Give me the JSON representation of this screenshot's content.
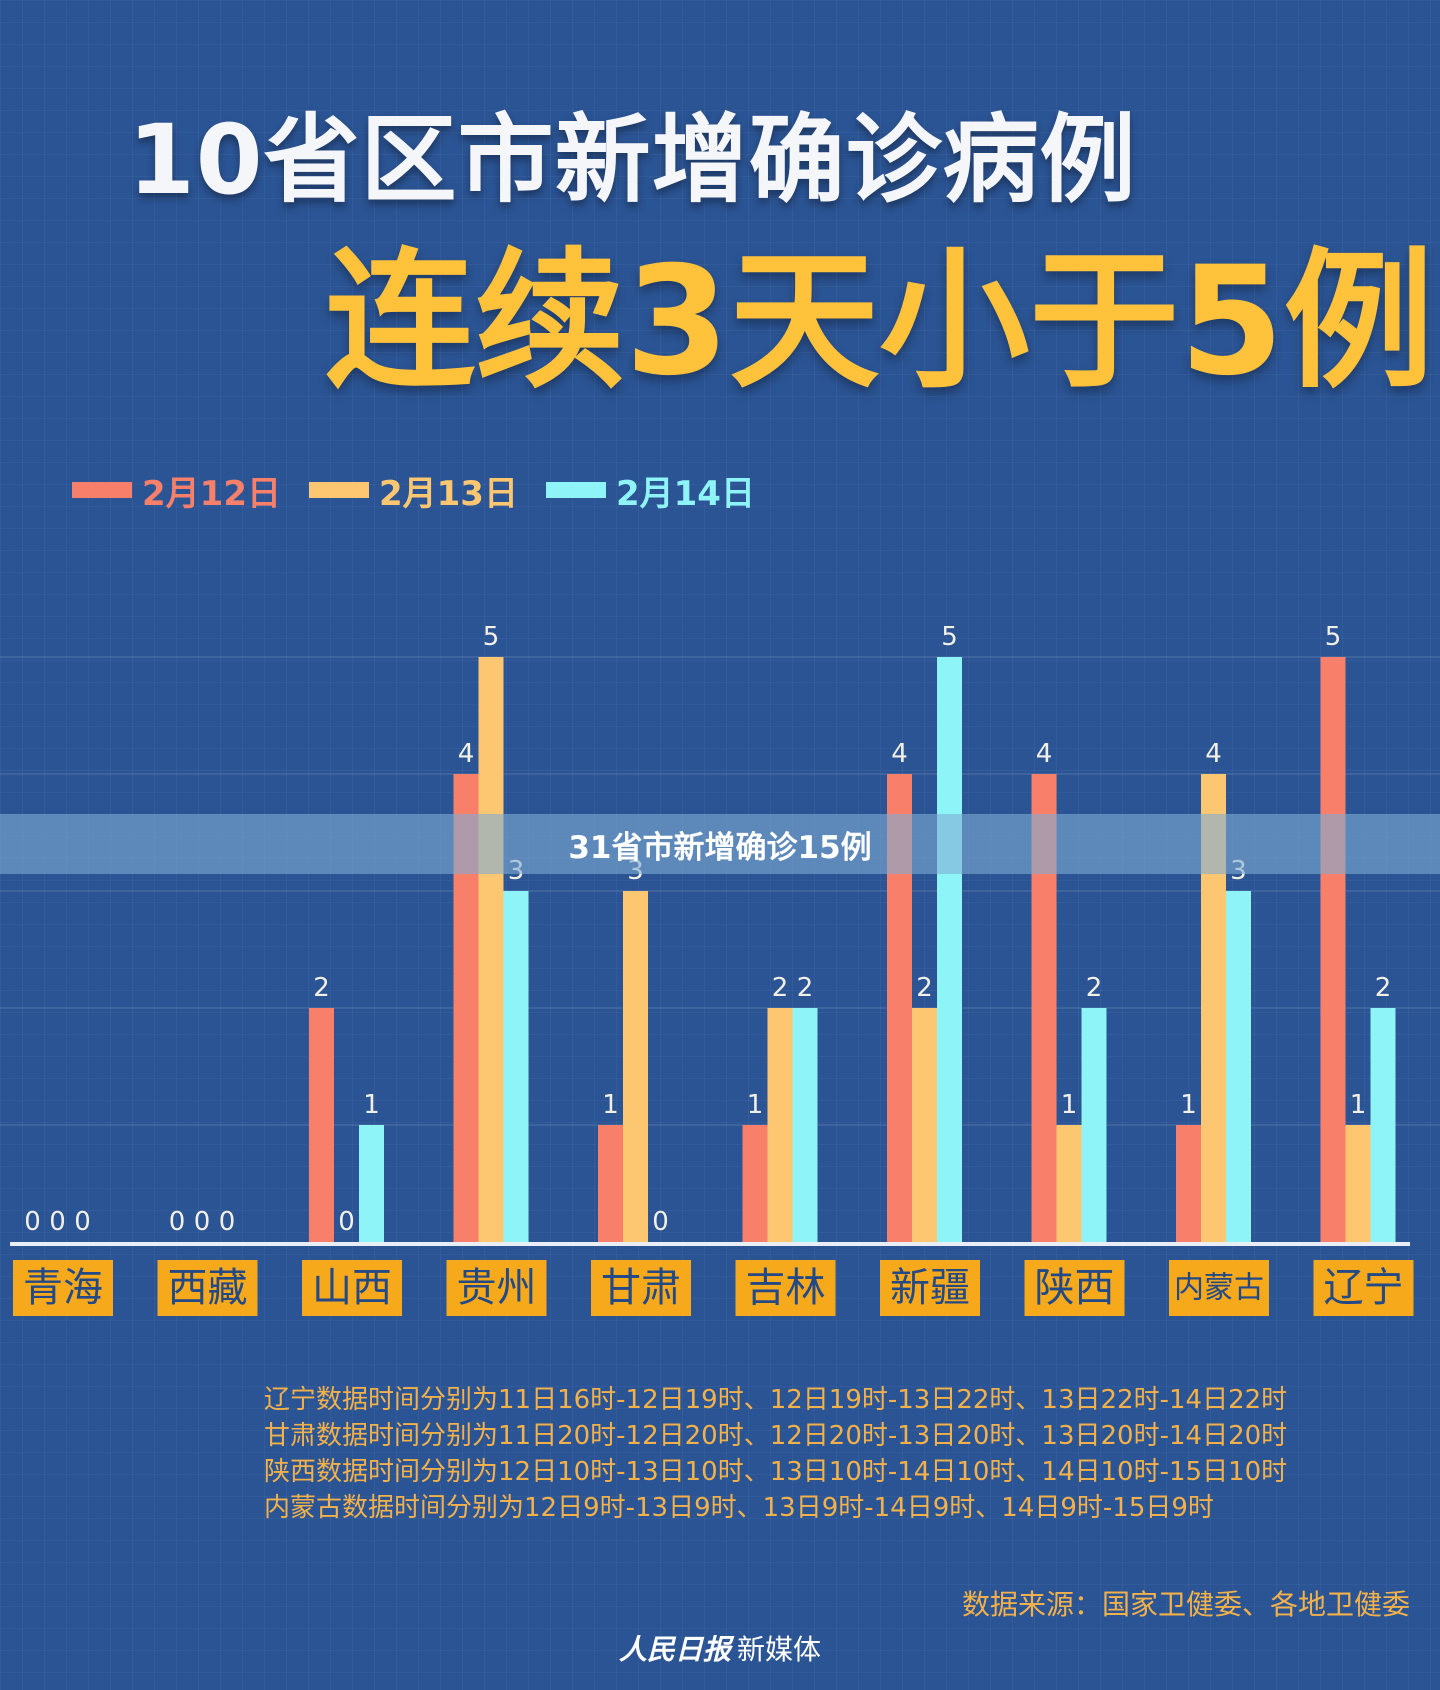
{
  "title": "10省区市新增确诊病例",
  "subtitle": "连续3天小于5例",
  "banner": "31省市新增确诊15例",
  "colors": {
    "background": "#2b5494",
    "label_box": "#f7a91c",
    "label_text": "#234a86",
    "note_text": "#f2b14a"
  },
  "chart_data": {
    "type": "bar",
    "categories": [
      "青海",
      "西藏",
      "山西",
      "贵州",
      "甘肃",
      "吉林",
      "新疆",
      "陕西",
      "内蒙古",
      "辽宁"
    ],
    "series": [
      {
        "name": "2月12日",
        "color": "#f87f6a",
        "values": [
          0,
          0,
          2,
          4,
          1,
          1,
          4,
          4,
          1,
          5
        ]
      },
      {
        "name": "2月13日",
        "color": "#fdc771",
        "values": [
          0,
          0,
          0,
          5,
          3,
          2,
          2,
          1,
          4,
          1
        ]
      },
      {
        "name": "2月14日",
        "color": "#8ef4f7",
        "values": [
          0,
          0,
          1,
          3,
          0,
          2,
          5,
          2,
          3,
          2
        ]
      }
    ],
    "ylim": [
      0,
      5
    ],
    "grid": true,
    "legend": "top-left"
  },
  "notes": [
    "辽宁数据时间分别为11日16时-12日19时、12日19时-13日22时、13日22时-14日22时",
    "甘肃数据时间分别为11日20时-12日20时、12日20时-13日20时、13日20时-14日20时",
    "陕西数据时间分别为12日10时-13日10时、13日10时-14日10时、14日10时-15日10时",
    "内蒙古数据时间分别为12日9时-13日9时、13日9时-14日9时、14日9时-15日9时"
  ],
  "source": "数据来源：国家卫健委、各地卫健委",
  "footer": {
    "logo": "人民日报",
    "text": "新媒体"
  }
}
